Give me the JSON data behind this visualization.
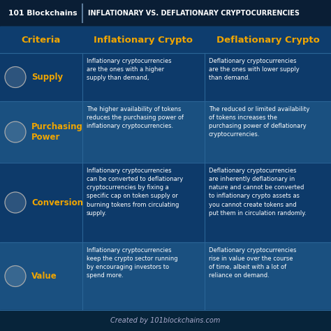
{
  "title_text": "INFLATIONARY VS. DEFLATIONARY CRYPTOCURRENCIES",
  "brand_text": "101 Blockchains",
  "bg_dark": "#0d2d4e",
  "bg_medium": "#1a4a7a",
  "bg_light": "#1e5799",
  "title_bar_bg": "#0a1e35",
  "header_bg": "#0e3d6e",
  "row_bg_a": "#0d3a6a",
  "row_bg_b": "#1a5080",
  "footer_bg": "#07243a",
  "gold_color": "#f0a500",
  "white_color": "#ffffff",
  "gray_text": "#cccccc",
  "divider_color": "#2a6496",
  "footer_text": "Created by 101blockchains.com",
  "col_header_criteria": "Criteria",
  "col_header_inf": "Inflationary Crypto",
  "col_header_def": "Deflationary Crypto",
  "rows": [
    {
      "criteria": "Supply",
      "inf_text": "Inflationary cryptocurrencies\nare the ones with a higher\nsupply than demand,",
      "def_text": "Deflationary cryptocurrencies\nare the ones with lower supply\nthan demand.",
      "row_bg": "#0d3a6a"
    },
    {
      "criteria": "Purchasing\nPower",
      "inf_text": "The higher availability of tokens\nreduces the purchasing power of\ninflationary cryptocurrencies.",
      "def_text": "The reduced or limited availability\nof tokens increases the\npurchasing power of deflationary\ncryptocurrencies.",
      "row_bg": "#1a5080"
    },
    {
      "criteria": "Conversion",
      "inf_text": "Inflationary cryptocurrencies\ncan be converted to deflationary\ncryptocurrencies by fixing a\nspecific cap on token supply or\nburning tokens from circulating\nsupply.",
      "def_text": "Deflationary cryptocurrencies\nare inherently deflationary in\nnature and cannot be converted\nto inflationary crypto assets as\nyou cannot create tokens and\nput them in circulation randomly.",
      "row_bg": "#0d3a6a"
    },
    {
      "criteria": "Value",
      "inf_text": "Inflationary cryptocurrencies\nkeep the crypto sector running\nby encouraging investors to\nspend more.",
      "def_text": "Deflationary cryptocurrencies\nrise in value over the course\nof time, albeit with a lot of\nreliance on demand.",
      "row_bg": "#1a5080"
    }
  ]
}
